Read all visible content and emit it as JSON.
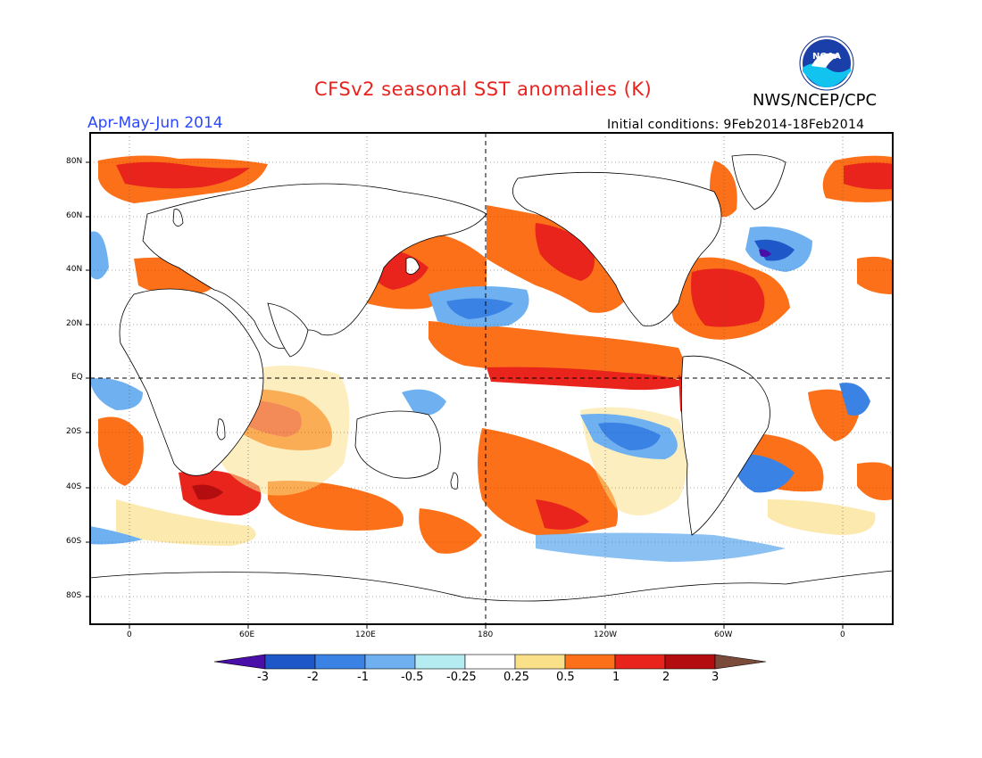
{
  "header": {
    "title": "CFSv2 seasonal SST anomalies (K)",
    "season": "Apr-May-Jun 2014",
    "agency": "NWS/NCEP/CPC",
    "initial_conditions": "Initial conditions: 9Feb2014-18Feb2014",
    "logo_text": "NOAA"
  },
  "map": {
    "lat_labels": [
      "80N",
      "60N",
      "40N",
      "20N",
      "EQ",
      "20S",
      "40S",
      "60S",
      "80S"
    ],
    "lon_labels": [
      "0",
      "60E",
      "120E",
      "180",
      "120W",
      "60W",
      "0"
    ]
  },
  "colorbar": {
    "labels": [
      "-3",
      "-2",
      "-1",
      "-0.5",
      "-0.25",
      "0.25",
      "0.5",
      "1",
      "2",
      "3"
    ],
    "colors": {
      "below_-3": "#4a0fa8",
      "-3_-2": "#1e58c8",
      "-2_-1": "#3a82e4",
      "-1_-0.5": "#6eb0f0",
      "-0.5_-0.25": "#b4ecf2",
      "-0.25_0.25": "#ffffff",
      "0.25_0.5": "#fbe08a",
      "0.5_1": "#fb7018",
      "1_2": "#e8241c",
      "2_3": "#b40d10",
      "above_3": "#7a4a3a"
    }
  }
}
